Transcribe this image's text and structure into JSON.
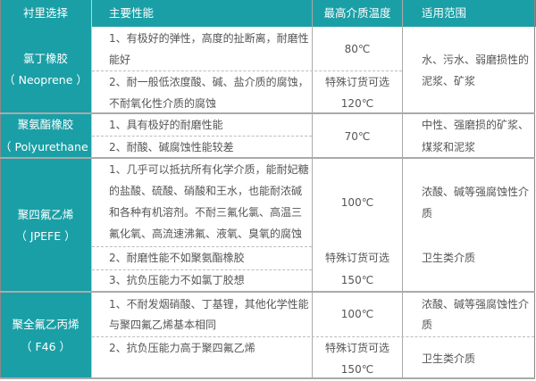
{
  "colors": {
    "header": "#1a9fa6",
    "border": "#aaaaaa",
    "text": "#555555"
  },
  "header": {
    "col1": "衬里选择",
    "col2": "主要性能",
    "col3": "最高介质温度",
    "col4": "适用范围"
  },
  "rows": [
    {
      "name": "氯丁橡胶",
      "code": "（ Neoprene ）",
      "props": [
        "1、有极好的弹性，高度的扯断离，耐磨性",
        "能好",
        "2、耐一般低浓度酸、碱、盐介质的腐蚀，",
        "不耐氧化性介质的腐蚀"
      ],
      "temp": [
        "80℃",
        "特殊订货可选",
        "120℃"
      ],
      "scope": [
        "水、污水、弱磨损性的",
        "泥浆、矿浆"
      ]
    },
    {
      "name": "聚氨酯橡胶",
      "code": "（ Polyurethane ）",
      "props": [
        "1、具有极好的耐磨性能",
        "2、耐酸、碱腐蚀性能较差"
      ],
      "temp": [
        "70℃"
      ],
      "scope": [
        "中性、强磨损的矿浆、",
        "煤浆和泥浆"
      ]
    },
    {
      "name": "聚四氟乙烯",
      "code": "（ JPEFE ）",
      "props": [
        "1、几乎可以抵抗所有化学介质，能耐妃糖",
        "的盐酸、硫酸、硝酸和王水，也能耐浓碱",
        "和各种有机溶剂。不耐三氟化氯、高温三",
        "氟化氧、高流速沸氟、液氧、臭氧的腐蚀",
        "2、耐磨性能不如聚氨酯橡胶",
        "3、抗负压能力不如氯丁胶想"
      ],
      "temp": [
        "100℃",
        "特殊订货可选",
        "150℃"
      ],
      "scope": [
        "浓酸、碱等强腐蚀性介",
        "质",
        "卫生类介质"
      ]
    },
    {
      "name": "聚全氟乙丙烯",
      "code": "（ F46 ）",
      "props": [
        "1、不耐发烟硝酸、丁基锂，其他化学性能",
        "与聚四氟乙烯基本相同",
        "2、抗负压能力高于聚四氟乙烯"
      ],
      "temp": [
        "100℃",
        "特殊订货可选",
        "150℃"
      ],
      "scope": [
        "浓酸、碱等强腐蚀性介",
        "质",
        "卫生类介质"
      ]
    }
  ]
}
